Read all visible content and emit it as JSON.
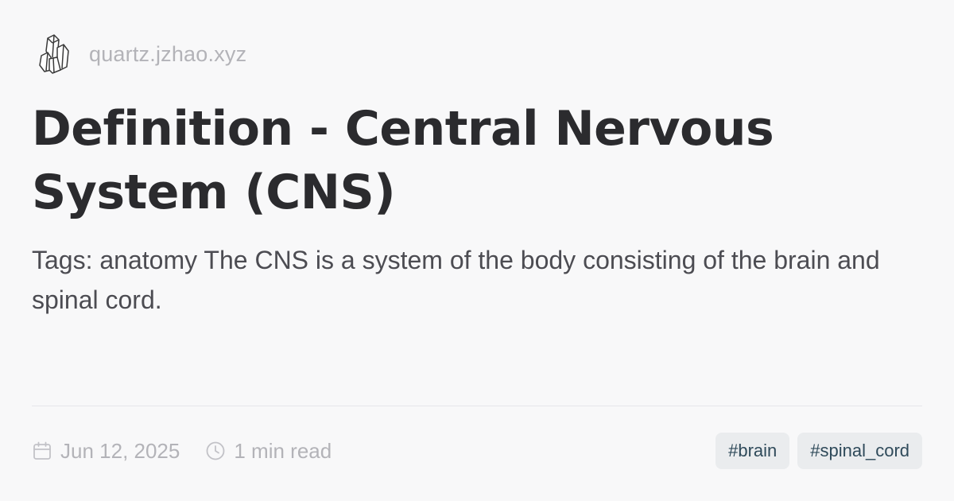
{
  "site": {
    "logo_icon": "crystal-logo-icon",
    "name": "quartz.jzhao.xyz"
  },
  "article": {
    "title": "Definition - Central Nervous System (CNS)",
    "description": "Tags: anatomy The CNS is a system of the body consisting of the brain and spinal cord."
  },
  "meta": {
    "date_icon": "calendar-icon",
    "date": "Jun 12, 2025",
    "reading_icon": "clock-icon",
    "reading_time": "1 min read"
  },
  "tags": [
    {
      "label": "#brain"
    },
    {
      "label": "#spinal_cord"
    }
  ]
}
